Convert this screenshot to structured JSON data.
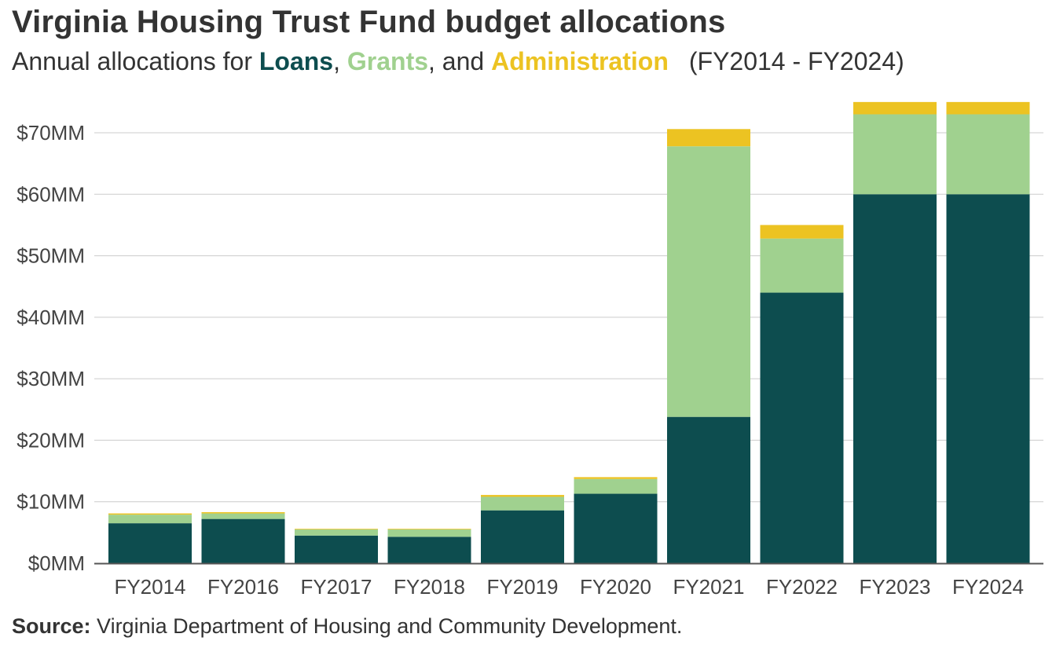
{
  "title": "Virginia Housing Trust Fund budget allocations",
  "subtitle": {
    "prefix": "Annual allocations for ",
    "loans": "Loans",
    "sep1": ", ",
    "grants": "Grants",
    "sep2": ", and ",
    "admin": "Administration",
    "suffix": "(FY2014 - FY2024)"
  },
  "source": {
    "label": "Source:",
    "text": "Virginia Department of Housing and Community Development."
  },
  "colors": {
    "loans": "#0d4d4f",
    "grants": "#a0d18f",
    "admin": "#ecc322",
    "grid": "#cccccc",
    "axis": "#555555"
  },
  "chart_data": {
    "type": "bar",
    "stacked": true,
    "categories": [
      "FY2014",
      "FY2016",
      "FY2017",
      "FY2018",
      "FY2019",
      "FY2020",
      "FY2021",
      "FY2022",
      "FY2023",
      "FY2024"
    ],
    "series": [
      {
        "name": "Loans",
        "color_key": "loans",
        "values": [
          6.5,
          7.2,
          4.5,
          4.3,
          8.6,
          11.3,
          23.8,
          44.0,
          60.0,
          60.0
        ]
      },
      {
        "name": "Grants",
        "color_key": "grants",
        "values": [
          1.4,
          0.9,
          1.0,
          1.2,
          2.2,
          2.4,
          44.0,
          8.8,
          13.0,
          13.0
        ]
      },
      {
        "name": "Administration",
        "color_key": "admin",
        "values": [
          0.2,
          0.2,
          0.1,
          0.1,
          0.3,
          0.3,
          2.8,
          2.2,
          2.0,
          2.0
        ]
      }
    ],
    "yticks": [
      0,
      10,
      20,
      30,
      40,
      50,
      60,
      70
    ],
    "ytick_labels": [
      "$0MM",
      "$10MM",
      "$20MM",
      "$30MM",
      "$40MM",
      "$50MM",
      "$60MM",
      "$70MM"
    ],
    "ylim": [
      0,
      75
    ],
    "ylabel": "",
    "xlabel": "",
    "grid": true,
    "legend": "in subtitle"
  }
}
